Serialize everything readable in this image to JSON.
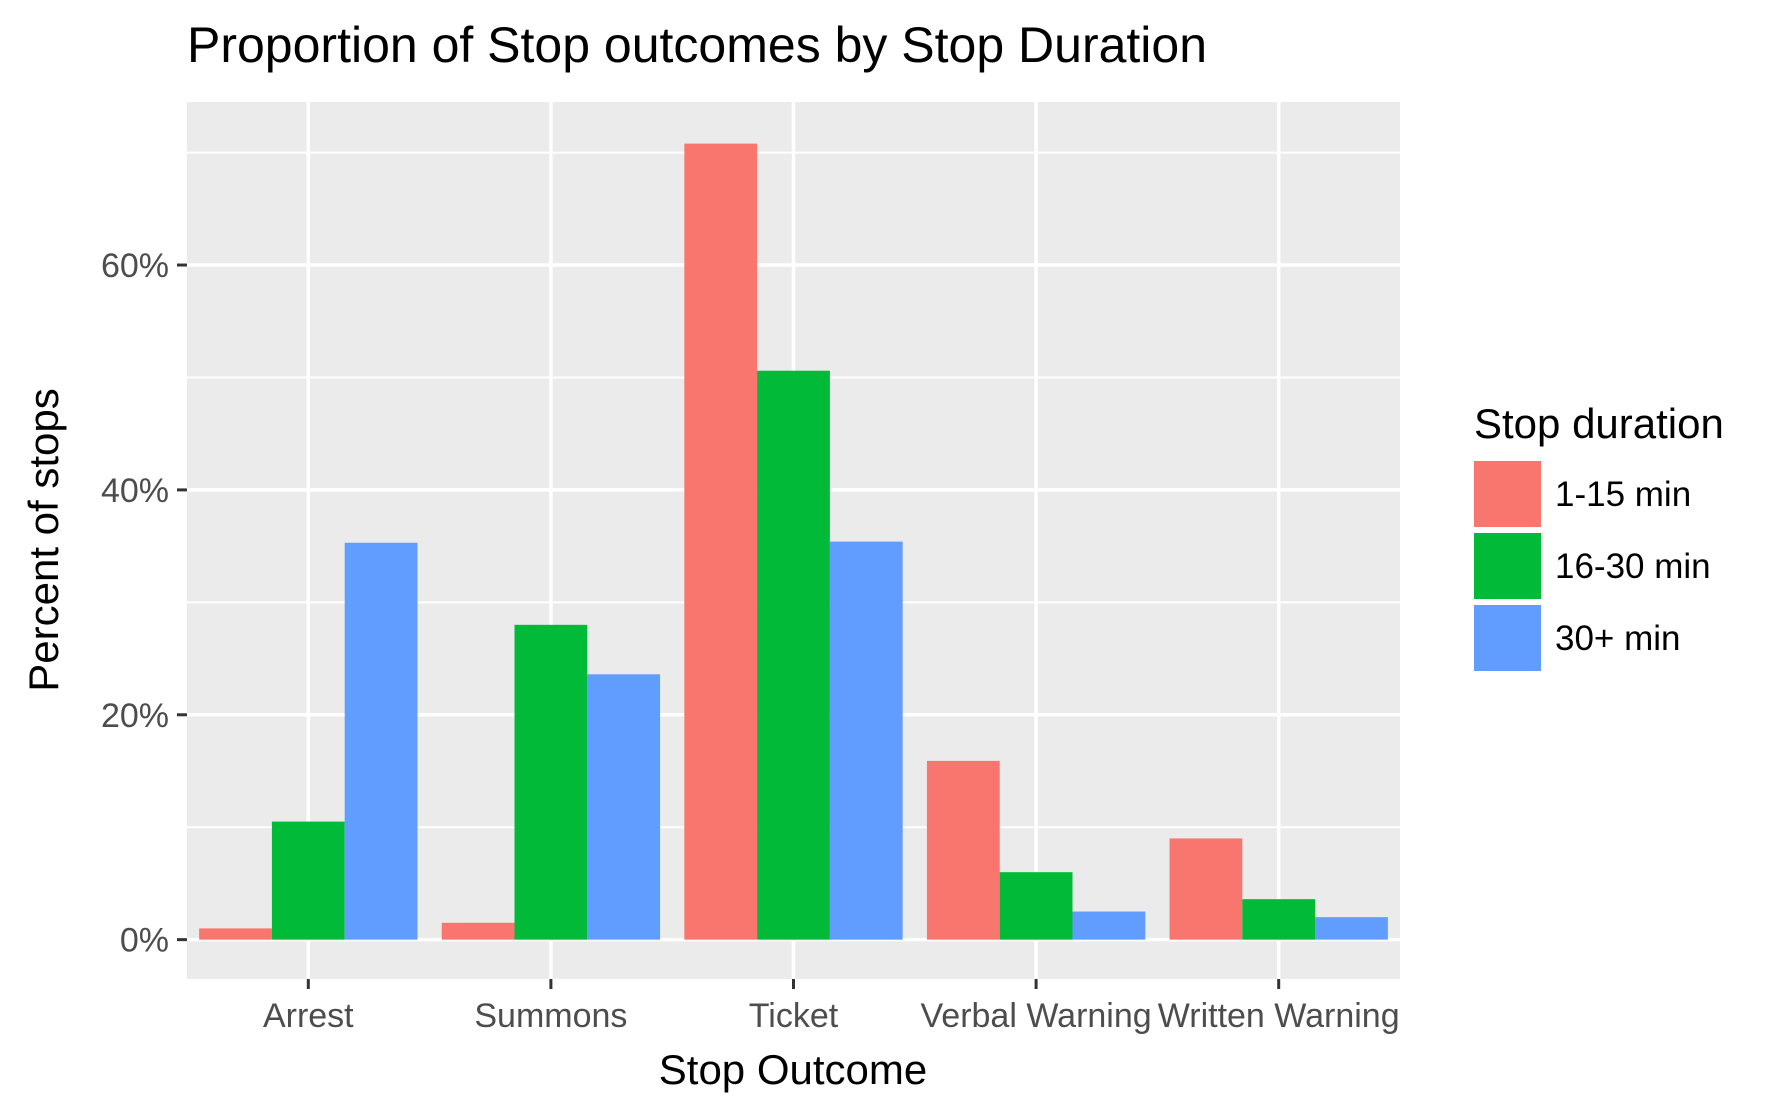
{
  "chart_data": {
    "type": "bar",
    "title": "Proportion of Stop outcomes by Stop Duration",
    "xlabel": "Stop Outcome",
    "ylabel": "Percent of stops",
    "categories": [
      "Arrest",
      "Summons",
      "Ticket",
      "Verbal Warning",
      "Written Warning"
    ],
    "series": [
      {
        "name": "1-15 min",
        "color": "#F8766D",
        "values": [
          1.0,
          1.5,
          70.8,
          15.9,
          9.0
        ]
      },
      {
        "name": "16-30 min",
        "color": "#00BA38",
        "values": [
          10.5,
          28.0,
          50.6,
          6.0,
          3.6
        ]
      },
      {
        "name": "30+ min",
        "color": "#619CFF",
        "values": [
          35.3,
          23.6,
          35.4,
          2.5,
          2.0
        ]
      }
    ],
    "ylim": [
      -3.5,
      74.5
    ],
    "yticks": [
      0,
      20,
      40,
      60
    ],
    "ytick_labels": [
      "0%",
      "20%",
      "40%",
      "60%"
    ],
    "grid": true,
    "legend": {
      "title": "Stop duration",
      "position": "right"
    },
    "panel_background": "#EBEBEB",
    "grid_color": "#FFFFFF"
  }
}
